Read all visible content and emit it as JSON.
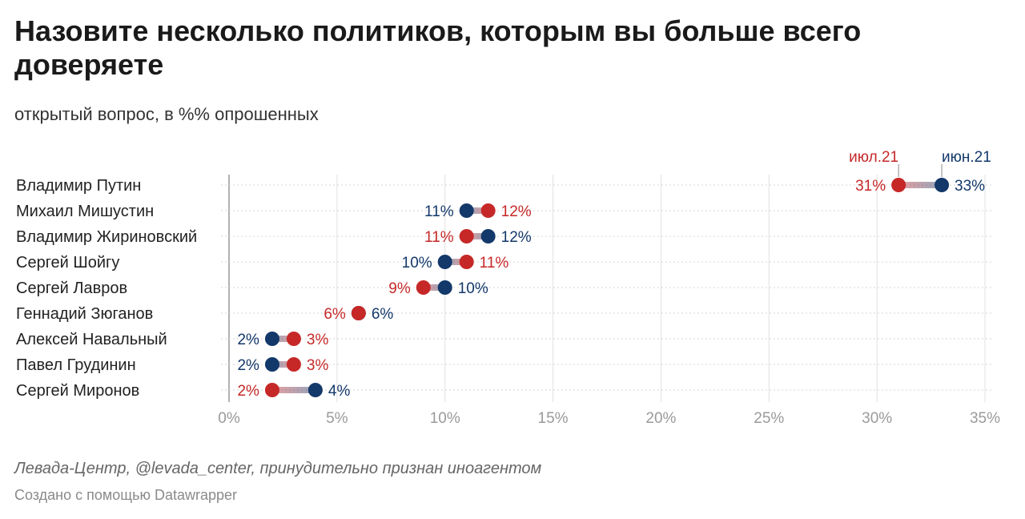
{
  "title": "Назовите несколько политиков, которым вы больше всего доверяете",
  "subtitle": "открытый вопрос, в %% опрошенных",
  "source": "Левада-Центр, @levada_center, принудительно признан иноагентом",
  "credit": "Создано с помощью Datawrapper",
  "colors": {
    "jul": "#c62828",
    "jun": "#13386a",
    "grid": "#e0e0e0",
    "axis": "#999999"
  },
  "chart_data": {
    "type": "dot",
    "xlim": [
      0,
      35
    ],
    "x_ticks": [
      "0%",
      "5%",
      "10%",
      "15%",
      "20%",
      "25%",
      "30%",
      "35%"
    ],
    "x_tick_values": [
      0,
      5,
      10,
      15,
      20,
      25,
      30,
      35
    ],
    "legend": {
      "jul": "июл.21",
      "jun": "июн.21"
    },
    "categories": [
      "Владимир Путин",
      "Михаил Мишустин",
      "Владимир Жириновский",
      "Сергей Шойгу",
      "Сергей Лавров",
      "Геннадий Зюганов",
      "Алексей Навальный",
      "Павел Грудинин",
      "Сергей Миронов"
    ],
    "series": [
      {
        "key": "jul",
        "name": "июл.21",
        "values": [
          31,
          12,
          11,
          11,
          9,
          6,
          3,
          3,
          2
        ],
        "labels": [
          "31%",
          "12%",
          "11%",
          "11%",
          "9%",
          "6%",
          "3%",
          "3%",
          "2%"
        ]
      },
      {
        "key": "jun",
        "name": "июн.21",
        "values": [
          33,
          11,
          12,
          10,
          10,
          6,
          2,
          2,
          4
        ],
        "labels": [
          "33%",
          "11%",
          "12%",
          "10%",
          "10%",
          "6%",
          "2%",
          "2%",
          "4%"
        ]
      }
    ]
  }
}
